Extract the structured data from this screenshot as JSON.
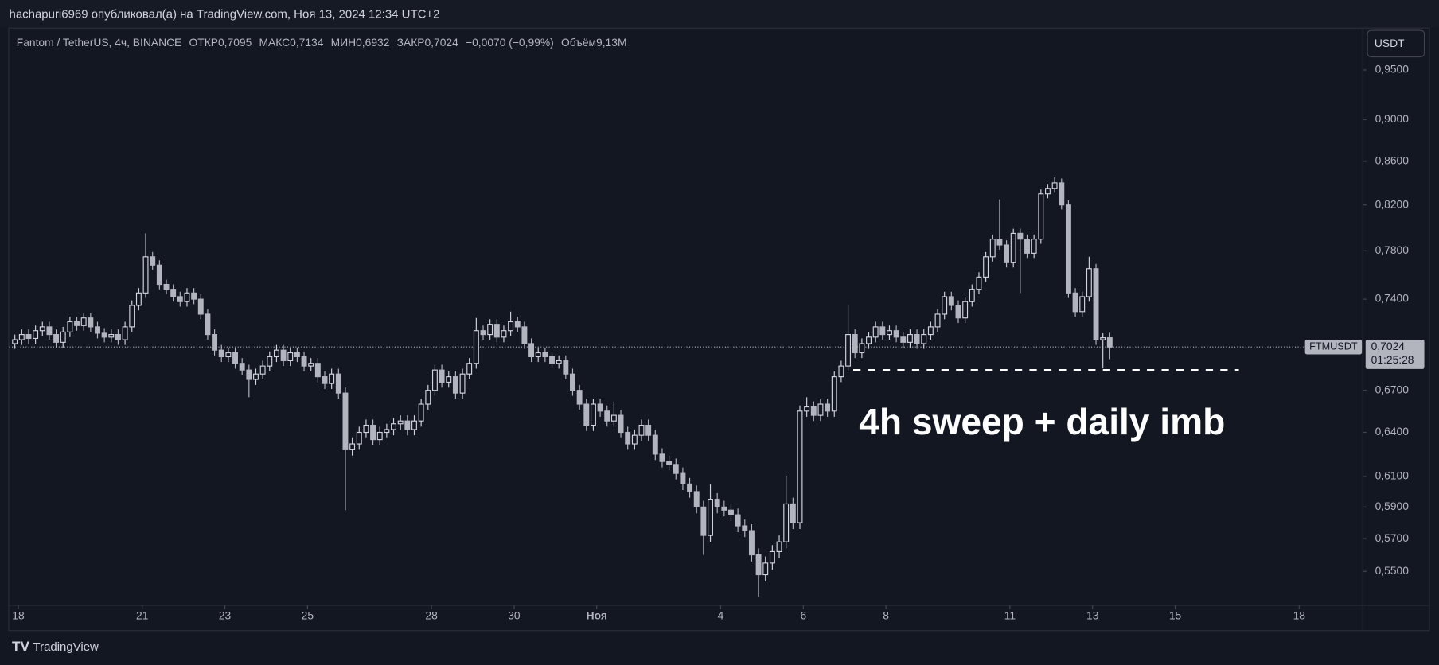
{
  "page": {
    "header": "hachapuri6969 опубликовал(а) на TradingView.com, Ноя 13, 2024 12:34 UTC+2",
    "footer": "TradingView"
  },
  "chart_data": {
    "type": "candlestick",
    "title": "Fantom / TetherUS, 4ч, BINANCE",
    "stats": [
      "ОТКР0,7095",
      "МАКС0,7134",
      "МИН0,6932",
      "ЗАКР0,7024",
      "−0,0070 (−0,99%)",
      "Объём9,13M"
    ],
    "currency": "USDT",
    "annotation": "4h sweep + daily imb",
    "price_label": {
      "symbol": "FTMUSDT",
      "value": 0.7024,
      "label": "0,7024",
      "countdown": "01:25:28"
    },
    "sweep_line": {
      "value": 0.685,
      "x": [
        485,
        709
      ]
    },
    "up_color": "#d1d4dc",
    "down_color": "#b2b5be",
    "log_scale": true,
    "grid": false,
    "xlim": [
      -5.3,
      781
    ],
    "ylim": [
      0.53,
      0.995
    ],
    "xticks": [
      {
        "value": 0,
        "label": "18"
      },
      {
        "value": 72,
        "label": "21"
      },
      {
        "value": 120,
        "label": "23"
      },
      {
        "value": 168,
        "label": "25"
      },
      {
        "value": 240,
        "label": "28"
      },
      {
        "value": 288,
        "label": "30"
      },
      {
        "value": 336,
        "label": "Ноя"
      },
      {
        "value": 408,
        "label": "4"
      },
      {
        "value": 456,
        "label": "6"
      },
      {
        "value": 504,
        "label": "8"
      },
      {
        "value": 576,
        "label": "11"
      },
      {
        "value": 624,
        "label": "13"
      },
      {
        "value": 672,
        "label": "15"
      },
      {
        "value": 744,
        "label": "18"
      }
    ],
    "yticks": [
      {
        "value": 0.55,
        "label": "0,5500"
      },
      {
        "value": 0.57,
        "label": "0,5700"
      },
      {
        "value": 0.59,
        "label": "0,5900"
      },
      {
        "value": 0.61,
        "label": "0,6100"
      },
      {
        "value": 0.64,
        "label": "0,6400"
      },
      {
        "value": 0.67,
        "label": "0,6700"
      },
      {
        "value": 0.74,
        "label": "0,7400"
      },
      {
        "value": 0.78,
        "label": "0,7800"
      },
      {
        "value": 0.82,
        "label": "0,8200"
      },
      {
        "value": 0.86,
        "label": "0,8600"
      },
      {
        "value": 0.9,
        "label": "0,9000"
      },
      {
        "value": 0.95,
        "label": "0,9500"
      }
    ],
    "x": [
      -2,
      2,
      6,
      10,
      14,
      18,
      22,
      26,
      30,
      34,
      38,
      42,
      46,
      50,
      54,
      58,
      62,
      66,
      70,
      74,
      78,
      82,
      86,
      90,
      94,
      98,
      102,
      106,
      110,
      114,
      118,
      122,
      126,
      130,
      134,
      138,
      142,
      146,
      150,
      154,
      158,
      162,
      166,
      170,
      174,
      178,
      182,
      186,
      190,
      194,
      198,
      202,
      206,
      210,
      214,
      218,
      222,
      226,
      230,
      234,
      238,
      242,
      246,
      250,
      254,
      258,
      262,
      266,
      270,
      274,
      278,
      282,
      286,
      290,
      294,
      298,
      302,
      306,
      310,
      314,
      318,
      322,
      326,
      330,
      334,
      338,
      342,
      346,
      350,
      354,
      358,
      362,
      366,
      370,
      374,
      378,
      382,
      386,
      390,
      394,
      398,
      402,
      406,
      410,
      414,
      418,
      422,
      426,
      430,
      434,
      438,
      442,
      446,
      450,
      454,
      458,
      462,
      466,
      470,
      474,
      478,
      482,
      486,
      490,
      494,
      498,
      502,
      506,
      510,
      514,
      518,
      522,
      526,
      530,
      534,
      538,
      542,
      546,
      550,
      554,
      558,
      562,
      566,
      570,
      574,
      578,
      582,
      586,
      590,
      594,
      598,
      602,
      606,
      610,
      614,
      618,
      622,
      626,
      630,
      634
    ],
    "open": [
      0.705,
      0.708,
      0.712,
      0.709,
      0.715,
      0.718,
      0.712,
      0.706,
      0.714,
      0.722,
      0.719,
      0.725,
      0.718,
      0.713,
      0.71,
      0.712,
      0.708,
      0.718,
      0.735,
      0.745,
      0.775,
      0.768,
      0.752,
      0.748,
      0.742,
      0.738,
      0.745,
      0.74,
      0.728,
      0.712,
      0.7,
      0.695,
      0.698,
      0.69,
      0.685,
      0.678,
      0.682,
      0.688,
      0.695,
      0.7,
      0.692,
      0.698,
      0.695,
      0.688,
      0.69,
      0.68,
      0.675,
      0.682,
      0.668,
      0.628,
      0.632,
      0.64,
      0.645,
      0.635,
      0.64,
      0.642,
      0.646,
      0.648,
      0.642,
      0.648,
      0.66,
      0.67,
      0.685,
      0.676,
      0.68,
      0.668,
      0.682,
      0.69,
      0.715,
      0.712,
      0.72,
      0.71,
      0.715,
      0.722,
      0.718,
      0.705,
      0.695,
      0.698,
      0.695,
      0.69,
      0.692,
      0.682,
      0.67,
      0.66,
      0.645,
      0.66,
      0.655,
      0.648,
      0.652,
      0.64,
      0.632,
      0.638,
      0.645,
      0.638,
      0.625,
      0.62,
      0.618,
      0.612,
      0.605,
      0.6,
      0.59,
      0.572,
      0.595,
      0.59,
      0.588,
      0.585,
      0.578,
      0.575,
      0.56,
      0.548,
      0.555,
      0.562,
      0.568,
      0.592,
      0.58,
      0.655,
      0.658,
      0.652,
      0.66,
      0.655,
      0.68,
      0.688,
      0.712,
      0.698,
      0.705,
      0.71,
      0.718,
      0.712,
      0.715,
      0.71,
      0.706,
      0.712,
      0.705,
      0.712,
      0.718,
      0.728,
      0.742,
      0.735,
      0.725,
      0.738,
      0.748,
      0.758,
      0.775,
      0.79,
      0.785,
      0.77,
      0.795,
      0.79,
      0.778,
      0.79,
      0.83,
      0.835,
      0.84,
      0.82,
      0.745,
      0.73,
      0.742,
      0.765,
      0.708,
      0.7095
    ],
    "high": [
      0.712,
      0.716,
      0.716,
      0.719,
      0.722,
      0.722,
      0.716,
      0.718,
      0.726,
      0.726,
      0.729,
      0.729,
      0.722,
      0.717,
      0.716,
      0.716,
      0.722,
      0.739,
      0.749,
      0.795,
      0.779,
      0.772,
      0.756,
      0.752,
      0.746,
      0.749,
      0.749,
      0.744,
      0.732,
      0.716,
      0.704,
      0.702,
      0.702,
      0.694,
      0.689,
      0.686,
      0.692,
      0.699,
      0.704,
      0.704,
      0.702,
      0.702,
      0.699,
      0.694,
      0.694,
      0.684,
      0.686,
      0.686,
      0.672,
      0.636,
      0.644,
      0.649,
      0.649,
      0.644,
      0.646,
      0.65,
      0.652,
      0.652,
      0.652,
      0.664,
      0.674,
      0.689,
      0.689,
      0.684,
      0.684,
      0.686,
      0.694,
      0.725,
      0.719,
      0.724,
      0.724,
      0.719,
      0.73,
      0.726,
      0.722,
      0.709,
      0.702,
      0.702,
      0.699,
      0.696,
      0.696,
      0.686,
      0.674,
      0.664,
      0.664,
      0.664,
      0.659,
      0.662,
      0.656,
      0.644,
      0.642,
      0.649,
      0.649,
      0.642,
      0.629,
      0.624,
      0.622,
      0.616,
      0.609,
      0.604,
      0.594,
      0.605,
      0.599,
      0.594,
      0.592,
      0.589,
      0.582,
      0.579,
      0.564,
      0.559,
      0.566,
      0.572,
      0.61,
      0.596,
      0.659,
      0.665,
      0.662,
      0.664,
      0.664,
      0.684,
      0.692,
      0.735,
      0.716,
      0.709,
      0.714,
      0.722,
      0.722,
      0.719,
      0.719,
      0.714,
      0.716,
      0.716,
      0.716,
      0.722,
      0.732,
      0.746,
      0.746,
      0.739,
      0.742,
      0.752,
      0.762,
      0.779,
      0.794,
      0.825,
      0.789,
      0.799,
      0.799,
      0.794,
      0.794,
      0.834,
      0.839,
      0.845,
      0.844,
      0.824,
      0.749,
      0.746,
      0.775,
      0.769,
      0.713,
      0.7134
    ],
    "low": [
      0.701,
      0.704,
      0.705,
      0.705,
      0.711,
      0.708,
      0.702,
      0.702,
      0.71,
      0.715,
      0.715,
      0.714,
      0.709,
      0.706,
      0.706,
      0.704,
      0.704,
      0.714,
      0.731,
      0.741,
      0.764,
      0.748,
      0.744,
      0.738,
      0.734,
      0.734,
      0.736,
      0.724,
      0.708,
      0.696,
      0.691,
      0.691,
      0.686,
      0.681,
      0.665,
      0.674,
      0.678,
      0.684,
      0.691,
      0.688,
      0.688,
      0.691,
      0.684,
      0.684,
      0.676,
      0.671,
      0.671,
      0.664,
      0.588,
      0.624,
      0.628,
      0.636,
      0.631,
      0.631,
      0.636,
      0.638,
      0.642,
      0.638,
      0.638,
      0.644,
      0.656,
      0.666,
      0.672,
      0.672,
      0.664,
      0.664,
      0.678,
      0.686,
      0.708,
      0.708,
      0.706,
      0.706,
      0.711,
      0.714,
      0.701,
      0.691,
      0.691,
      0.691,
      0.686,
      0.686,
      0.678,
      0.666,
      0.656,
      0.641,
      0.641,
      0.651,
      0.644,
      0.644,
      0.636,
      0.628,
      0.628,
      0.634,
      0.634,
      0.621,
      0.616,
      0.614,
      0.608,
      0.601,
      0.596,
      0.586,
      0.56,
      0.568,
      0.586,
      0.584,
      0.581,
      0.574,
      0.571,
      0.556,
      0.535,
      0.544,
      0.551,
      0.558,
      0.564,
      0.576,
      0.576,
      0.651,
      0.648,
      0.648,
      0.651,
      0.651,
      0.676,
      0.684,
      0.694,
      0.694,
      0.701,
      0.706,
      0.708,
      0.708,
      0.706,
      0.702,
      0.702,
      0.701,
      0.701,
      0.708,
      0.714,
      0.724,
      0.731,
      0.721,
      0.721,
      0.734,
      0.744,
      0.754,
      0.771,
      0.781,
      0.766,
      0.766,
      0.745,
      0.774,
      0.774,
      0.786,
      0.826,
      0.831,
      0.816,
      0.741,
      0.726,
      0.726,
      0.738,
      0.704,
      0.6862,
      0.6932
    ],
    "close": [
      0.708,
      0.712,
      0.709,
      0.715,
      0.718,
      0.712,
      0.706,
      0.714,
      0.722,
      0.719,
      0.725,
      0.718,
      0.713,
      0.71,
      0.712,
      0.708,
      0.718,
      0.735,
      0.745,
      0.775,
      0.768,
      0.752,
      0.748,
      0.742,
      0.738,
      0.745,
      0.74,
      0.728,
      0.712,
      0.7,
      0.695,
      0.698,
      0.69,
      0.685,
      0.678,
      0.682,
      0.688,
      0.695,
      0.7,
      0.692,
      0.698,
      0.695,
      0.688,
      0.69,
      0.68,
      0.675,
      0.682,
      0.668,
      0.628,
      0.632,
      0.64,
      0.645,
      0.635,
      0.64,
      0.642,
      0.646,
      0.648,
      0.642,
      0.648,
      0.66,
      0.67,
      0.685,
      0.676,
      0.68,
      0.668,
      0.682,
      0.69,
      0.715,
      0.712,
      0.72,
      0.71,
      0.715,
      0.722,
      0.718,
      0.705,
      0.695,
      0.698,
      0.695,
      0.69,
      0.692,
      0.682,
      0.67,
      0.66,
      0.645,
      0.66,
      0.655,
      0.648,
      0.652,
      0.64,
      0.632,
      0.638,
      0.645,
      0.638,
      0.625,
      0.62,
      0.618,
      0.612,
      0.605,
      0.6,
      0.59,
      0.572,
      0.595,
      0.59,
      0.588,
      0.585,
      0.578,
      0.575,
      0.56,
      0.548,
      0.555,
      0.562,
      0.568,
      0.592,
      0.58,
      0.655,
      0.658,
      0.652,
      0.66,
      0.655,
      0.68,
      0.688,
      0.712,
      0.698,
      0.705,
      0.71,
      0.718,
      0.712,
      0.715,
      0.71,
      0.706,
      0.712,
      0.705,
      0.712,
      0.718,
      0.728,
      0.742,
      0.735,
      0.725,
      0.738,
      0.748,
      0.758,
      0.775,
      0.79,
      0.785,
      0.77,
      0.795,
      0.79,
      0.778,
      0.79,
      0.83,
      0.835,
      0.84,
      0.82,
      0.745,
      0.73,
      0.742,
      0.765,
      0.708,
      0.7095,
      0.7024
    ]
  }
}
